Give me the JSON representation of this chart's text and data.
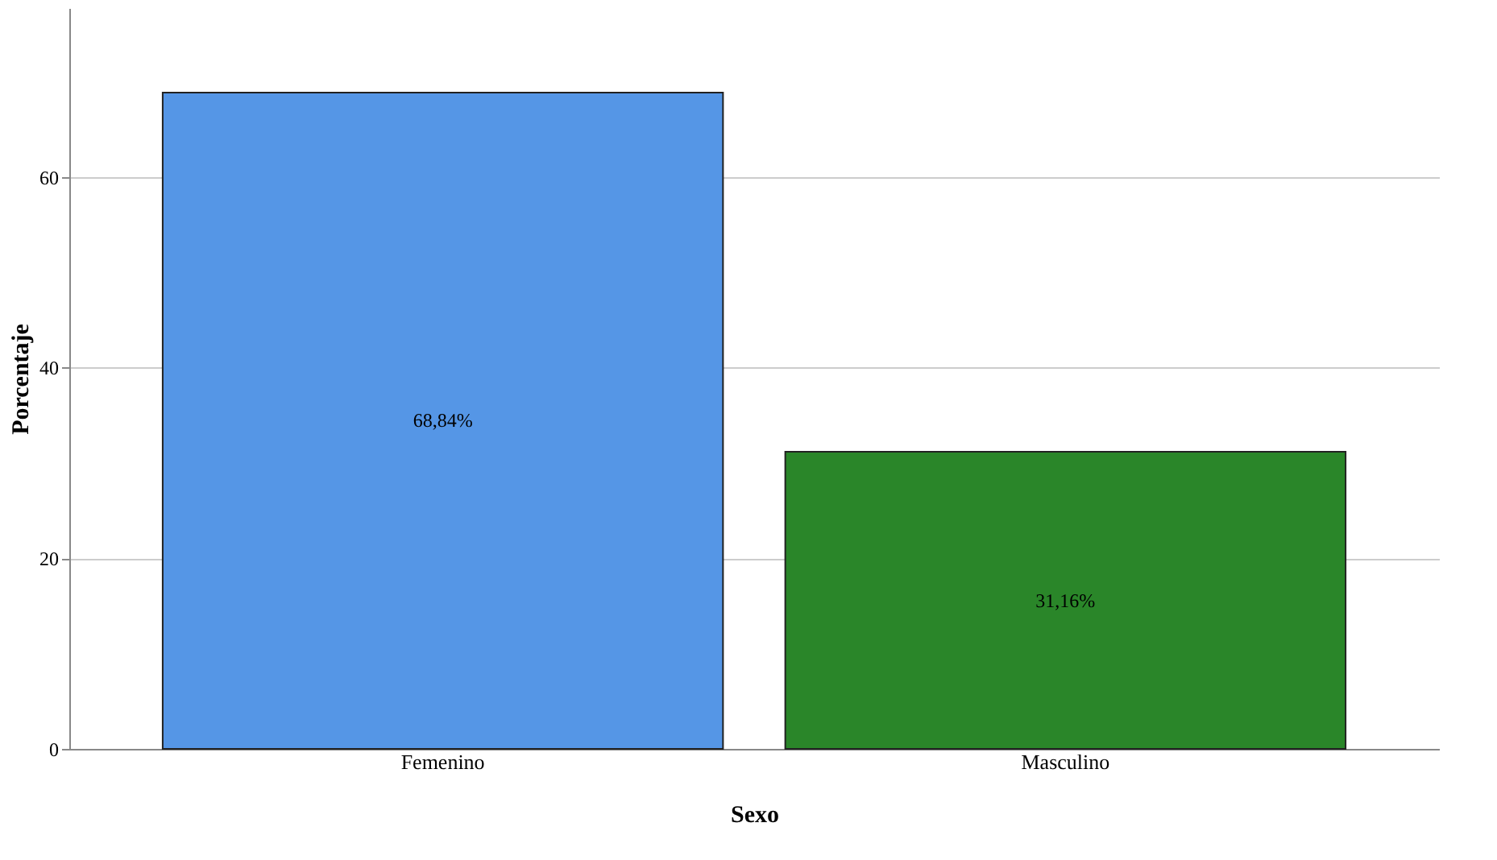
{
  "chart_data": {
    "type": "bar",
    "xlabel": "Sexo",
    "ylabel": "Porcentaje",
    "categories": [
      "Femenino",
      "Masculino"
    ],
    "values": [
      68.84,
      31.16
    ],
    "colors": [
      "#5596e6",
      "#2a8629"
    ],
    "value_labels": [
      "68,84%",
      "31,16%"
    ],
    "ylim": [
      0,
      77.7
    ],
    "yticks": [
      0,
      20,
      40,
      60
    ],
    "grid": "y"
  }
}
